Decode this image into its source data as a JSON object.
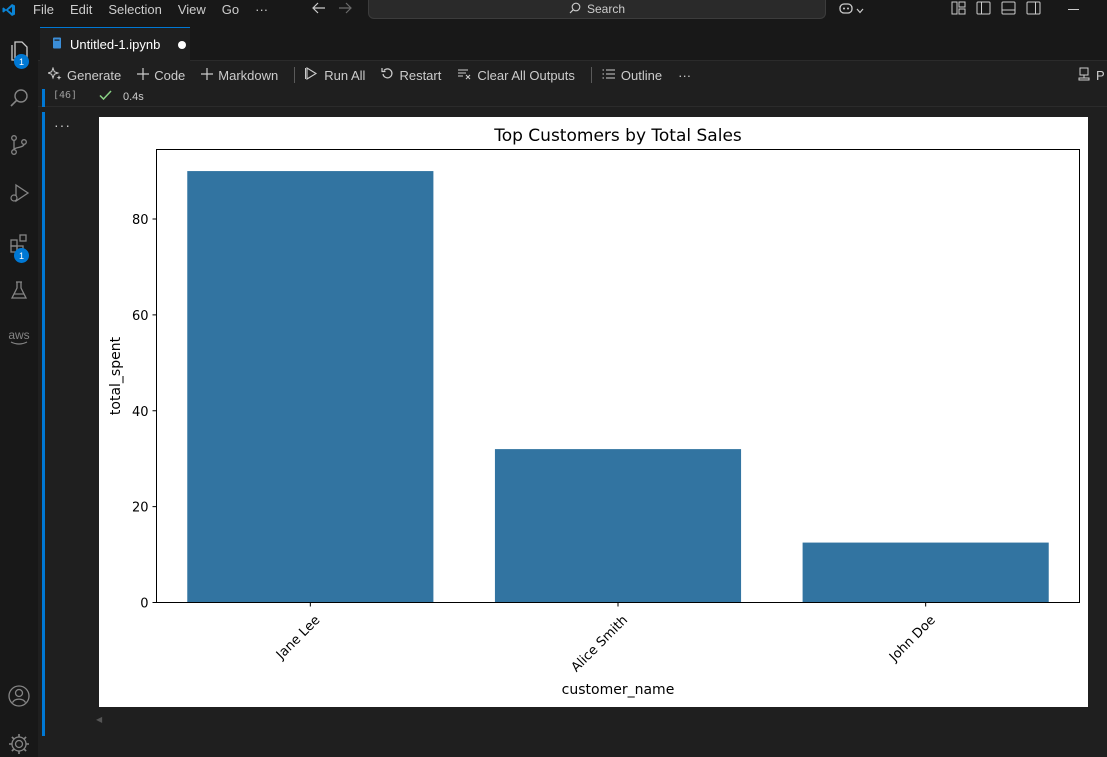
{
  "menu": {
    "items": [
      "File",
      "Edit",
      "Selection",
      "View",
      "Go",
      "···"
    ]
  },
  "search": {
    "label": "Search"
  },
  "activity": {
    "explorer_badge": "1",
    "extensions_badge": "1",
    "aws_label": "aws"
  },
  "tab": {
    "filename": "Untitled-1.ipynb"
  },
  "toolbar": {
    "generate": "Generate",
    "code": "Code",
    "markdown": "Markdown",
    "run_all": "Run All",
    "restart": "Restart",
    "clear_outputs": "Clear All Outputs",
    "outline": "Outline",
    "more": "···",
    "right_label": "P"
  },
  "cell": {
    "execution_count": "[46]",
    "duration": "0.4s",
    "more": "···"
  },
  "colors": {
    "accent": "#0078d4",
    "bar": "#3274a1",
    "success": "#89d185"
  },
  "chart_data": {
    "type": "bar",
    "title": "Top Customers by Total Sales",
    "xlabel": "customer_name",
    "ylabel": "total_spent",
    "categories": [
      "Jane Lee",
      "Alice Smith",
      "John Doe"
    ],
    "values": [
      90,
      32,
      12.5
    ],
    "ylim": [
      0,
      94.5
    ],
    "yticks": [
      0,
      20,
      40,
      60,
      80
    ],
    "grid": false,
    "x_tick_rotation": 45
  }
}
